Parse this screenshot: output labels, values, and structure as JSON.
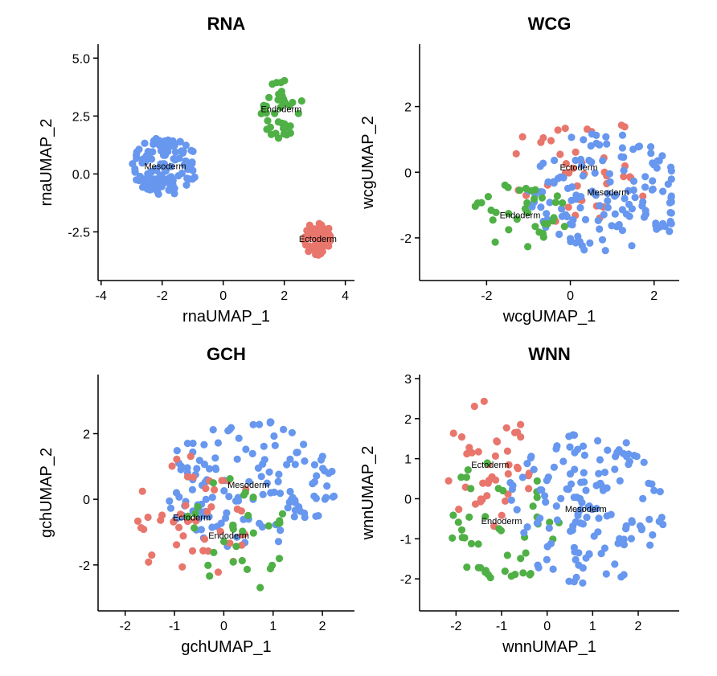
{
  "colors": {
    "Ectoderm": "#E8766C",
    "Endoderm": "#4FB046",
    "Mesoderm": "#6797EE"
  },
  "chart_data": [
    {
      "type": "scatter",
      "title": "RNA",
      "xlabel": "rnaUMAP_1",
      "ylabel": "rnaUMAP_2",
      "xlim": [
        -4.1,
        4.3
      ],
      "ylim": [
        -4.6,
        5.6
      ],
      "xticks": [
        -4,
        -2,
        0,
        2,
        4
      ],
      "xtick_labels": [
        "-4",
        "-2",
        "0",
        "2",
        "4"
      ],
      "yticks": [
        -2.5,
        0.0,
        2.5,
        5.0
      ],
      "ytick_labels": [
        "-2.5",
        "0.0",
        "2.5",
        "5.0"
      ],
      "clusters": [
        {
          "name": "Mesoderm",
          "label_x": -1.9,
          "label_y": 0.35,
          "spread_x": 1.1,
          "spread_y": 1.25,
          "n": 120
        },
        {
          "name": "Endoderm",
          "label_x": 1.9,
          "label_y": 2.8,
          "spread_x": 0.7,
          "spread_y": 1.3,
          "n": 38
        },
        {
          "name": "Ectoderm",
          "label_x": 3.1,
          "label_y": -2.8,
          "spread_x": 0.45,
          "spread_y": 0.75,
          "n": 55
        }
      ]
    },
    {
      "type": "scatter",
      "title": "WCG",
      "xlabel": "wcgUMAP_1",
      "ylabel": "wcgUMAP_2",
      "xlim": [
        -3.6,
        2.6
      ],
      "ylim": [
        -3.3,
        3.9
      ],
      "xticks": [
        -2,
        0,
        2
      ],
      "xtick_labels": [
        "-2",
        "0",
        "2"
      ],
      "yticks": [
        -2,
        0,
        2
      ],
      "ytick_labels": [
        "-2",
        "0",
        "2"
      ],
      "clusters": [
        {
          "name": "Ectoderm",
          "label_x": 0.2,
          "label_y": 0.15,
          "spread_x": 1.8,
          "spread_y": 1.8,
          "n": 40
        },
        {
          "name": "Mesoderm",
          "label_x": 0.9,
          "label_y": -0.6,
          "spread_x": 1.9,
          "spread_y": 1.9,
          "n": 140
        },
        {
          "name": "Endoderm",
          "label_x": -1.2,
          "label_y": -1.3,
          "spread_x": 1.3,
          "spread_y": 1.0,
          "n": 35
        }
      ]
    },
    {
      "type": "scatter",
      "title": "GCH",
      "xlabel": "gchUMAP_1",
      "ylabel": "gchUMAP_2",
      "xlim": [
        -2.55,
        2.65
      ],
      "ylim": [
        -3.4,
        3.8
      ],
      "xticks": [
        -2,
        -1,
        0,
        1,
        2
      ],
      "xtick_labels": [
        "-2",
        "-1",
        "0",
        "1",
        "2"
      ],
      "yticks": [
        -2,
        0,
        2
      ],
      "ytick_labels": [
        "-2",
        "0",
        "2"
      ],
      "clusters": [
        {
          "name": "Mesoderm",
          "label_x": 0.5,
          "label_y": 0.45,
          "spread_x": 1.8,
          "spread_y": 2.0,
          "n": 140
        },
        {
          "name": "Ectoderm",
          "label_x": -0.65,
          "label_y": -0.55,
          "spread_x": 1.3,
          "spread_y": 1.9,
          "n": 45
        },
        {
          "name": "Endoderm",
          "label_x": 0.1,
          "label_y": -1.1,
          "spread_x": 1.2,
          "spread_y": 1.9,
          "n": 32
        }
      ]
    },
    {
      "type": "scatter",
      "title": "WNN",
      "xlabel": "wnnUMAP_1",
      "ylabel": "wnnUMAP_2",
      "xlim": [
        -2.8,
        2.9
      ],
      "ylim": [
        -2.8,
        3.1
      ],
      "xticks": [
        -2,
        -1,
        0,
        1,
        2
      ],
      "xtick_labels": [
        "-2",
        "-1",
        "0",
        "1",
        "2"
      ],
      "yticks": [
        -2,
        -1,
        0,
        1,
        2,
        3
      ],
      "ytick_labels": [
        "-2",
        "-1",
        "0",
        "1",
        "2",
        "3"
      ],
      "clusters": [
        {
          "name": "Ectoderm",
          "label_x": -1.25,
          "label_y": 0.85,
          "spread_x": 1.0,
          "spread_y": 1.6,
          "n": 42
        },
        {
          "name": "Endoderm",
          "label_x": -1.0,
          "label_y": -0.55,
          "spread_x": 1.4,
          "spread_y": 1.6,
          "n": 45
        },
        {
          "name": "Mesoderm",
          "label_x": 0.85,
          "label_y": -0.25,
          "spread_x": 1.8,
          "spread_y": 1.9,
          "n": 140
        }
      ]
    }
  ]
}
